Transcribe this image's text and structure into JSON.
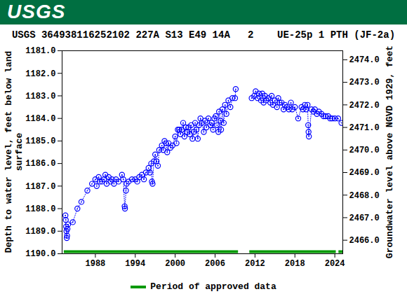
{
  "header": {
    "logo": "USGS"
  },
  "chart_data": {
    "type": "scatter",
    "title": "USGS 364938116252102 227A S13 E49 14A   2    UE-25p 1 PTH (JF-2a)",
    "y_label": "Depth to water level, feet below land surface",
    "y2_label": "Groundwater level above NGVD 1929, feet",
    "color": "#0000ff",
    "marker": "circle",
    "line_style": "dotted",
    "legend": "bottom",
    "grid": false,
    "x": [
      1983.5,
      1983.55,
      1983.6,
      1983.65,
      1983.7,
      1983.75,
      1983.8,
      1983.9,
      1984.6,
      1985.3,
      1985.9,
      1986.8,
      1987.5,
      1988.0,
      1988.2,
      1988.5,
      1988.7,
      1989.0,
      1989.3,
      1989.5,
      1989.7,
      1990.0,
      1990.3,
      1990.5,
      1990.8,
      1991.1,
      1991.5,
      1992.0,
      1992.2,
      1992.4,
      1992.45,
      1992.6,
      1992.7,
      1993.0,
      1993.5,
      1994.0,
      1994.3,
      1994.6,
      1995.0,
      1995.3,
      1995.6,
      1996.0,
      1996.2,
      1996.4,
      1996.5,
      1996.6,
      1996.8,
      1997.0,
      1997.2,
      1997.4,
      1997.6,
      1998.0,
      1998.2,
      1998.4,
      1998.6,
      1998.8,
      1999.0,
      1999.3,
      1999.6,
      2000.0,
      2000.2,
      2000.4,
      2000.6,
      2000.8,
      2001.0,
      2001.2,
      2001.4,
      2001.6,
      2001.8,
      2002.0,
      2002.2,
      2002.4,
      2002.6,
      2002.8,
      2003.0,
      2003.2,
      2003.4,
      2003.6,
      2003.8,
      2004.0,
      2004.3,
      2004.5,
      2004.7,
      2005.0,
      2005.3,
      2005.5,
      2005.7,
      2005.9,
      2006.1,
      2006.3,
      2006.5,
      2006.6,
      2006.8,
      2006.9,
      2007.1,
      2007.3,
      2007.5,
      2007.7,
      2008.0,
      2008.3,
      2008.6,
      2009.0,
      2009.1,
      2010.3,
      2011.5,
      2011.9,
      2012.1,
      2012.4,
      2012.6,
      2012.9,
      2013.1,
      2013.3,
      2013.5,
      2013.7,
      2014.0,
      2014.3,
      2014.5,
      2014.7,
      2015.0,
      2015.3,
      2015.5,
      2015.7,
      2016.0,
      2016.3,
      2016.5,
      2016.8,
      2017.1,
      2017.4,
      2017.6,
      2018.0,
      2018.5,
      2019.0,
      2019.2,
      2019.5,
      2019.7,
      2019.9,
      2020.0,
      2020.05,
      2020.1,
      2020.5,
      2020.8,
      2021.0,
      2021.3,
      2021.6,
      2022.0,
      2022.3,
      2022.6,
      2023.0,
      2023.3,
      2023.6,
      2024.0,
      2024.5,
      2025.0
    ],
    "values": [
      1188.3,
      1188.5,
      1188.8,
      1189.0,
      1189.3,
      1189.2,
      1188.9,
      1188.7,
      1188.6,
      1188.0,
      1187.7,
      1187.2,
      1186.9,
      1186.7,
      1187.0,
      1186.6,
      1186.8,
      1186.8,
      1186.7,
      1186.5,
      1186.9,
      1186.6,
      1186.8,
      1186.7,
      1186.9,
      1186.7,
      1186.8,
      1186.5,
      1186.7,
      1187.9,
      1188.0,
      1187.2,
      1186.9,
      1186.8,
      1186.7,
      1186.7,
      1186.8,
      1186.6,
      1186.5,
      1186.7,
      1186.4,
      1186.2,
      1186.4,
      1186.0,
      1186.8,
      1186.9,
      1185.9,
      1185.6,
      1185.9,
      1186.1,
      1185.4,
      1185.2,
      1185.4,
      1185.0,
      1185.1,
      1185.5,
      1185.1,
      1185.3,
      1185.2,
      1184.8,
      1185.1,
      1184.5,
      1184.5,
      1184.7,
      1184.5,
      1184.2,
      1184.8,
      1184.4,
      1184.6,
      1184.4,
      1184.7,
      1184.3,
      1184.9,
      1184.6,
      1184.2,
      1184.5,
      1184.9,
      1184.3,
      1184.0,
      1184.2,
      1184.6,
      1184.1,
      1184.4,
      1184.0,
      1184.3,
      1184.2,
      1184.5,
      1184.0,
      1183.9,
      1184.3,
      1184.6,
      1183.7,
      1184.1,
      1184.5,
      1183.6,
      1184.2,
      1183.4,
      1183.8,
      1183.2,
      1183.5,
      1183.1,
      1183.1,
      1182.7,
      null,
      1183.1,
      1183.0,
      1182.8,
      1183.1,
      1182.9,
      1183.2,
      1182.9,
      1183.3,
      1183.0,
      1183.2,
      1183.1,
      1183.3,
      1183.0,
      1183.4,
      1183.2,
      1183.5,
      1183.1,
      1183.3,
      1183.3,
      1183.6,
      1183.4,
      1183.5,
      1183.6,
      1183.3,
      1183.6,
      1183.5,
      1184.0,
      1183.5,
      1183.6,
      1183.4,
      1183.6,
      1183.4,
      1184.3,
      1184.6,
      1184.8,
      1183.6,
      1183.7,
      1183.6,
      1183.8,
      1183.7,
      1183.8,
      1183.9,
      1183.9,
      1183.9,
      1184.0,
      1184.0,
      1184.0,
      1184.0,
      1184.2
    ],
    "xlim": [
      1983.0,
      2025.2
    ],
    "xticks": [
      1988,
      1994,
      2000,
      2006,
      2012,
      2018,
      2024
    ],
    "ylim": [
      1190.0,
      1181.0
    ],
    "yticks": [
      {
        "value": 1181,
        "label": "1181.0"
      },
      {
        "value": 1182,
        "label": "1182.0"
      },
      {
        "value": 1183,
        "label": "1183.0"
      },
      {
        "value": 1184,
        "label": "1184.0"
      },
      {
        "value": 1185,
        "label": "1185.0"
      },
      {
        "value": 1186,
        "label": "1186.0"
      },
      {
        "value": 1187,
        "label": "1187.0"
      },
      {
        "value": 1188,
        "label": "1188.0"
      },
      {
        "value": 1189,
        "label": "1189.0"
      },
      {
        "value": 1190,
        "label": "1190.0"
      }
    ],
    "y2lim": [
      2465.4,
      2474.4
    ],
    "y2ticks": [
      {
        "value": 2466,
        "label": "2466.0"
      },
      {
        "value": 2467,
        "label": "2467.0"
      },
      {
        "value": 2468,
        "label": "2468.0"
      },
      {
        "value": 2469,
        "label": "2469.0"
      },
      {
        "value": 2470,
        "label": "2470.0"
      },
      {
        "value": 2471,
        "label": "2471.0"
      },
      {
        "value": 2472,
        "label": "2472.0"
      },
      {
        "value": 2473,
        "label": "2473.0"
      },
      {
        "value": 2474,
        "label": "2474.0"
      }
    ],
    "approved_data": {
      "name": "Period of approved data",
      "color": "#009900",
      "periods": [
        [
          1983.3,
          2009.5
        ],
        [
          2011.2,
          2024.2
        ],
        [
          2024.6,
          2025.2
        ]
      ]
    }
  }
}
